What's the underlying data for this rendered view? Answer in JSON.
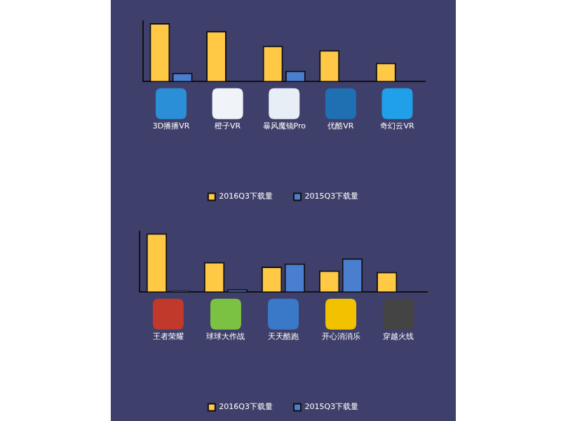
{
  "chart_data": [
    {
      "type": "bar",
      "categories": [
        "3D播播VR",
        "橙子VR",
        "暴风魔镜Pro",
        "优酷VR",
        "奇幻云VR"
      ],
      "series": [
        {
          "name": "2016Q3下载量",
          "color": "#FFC845",
          "values": [
            164,
            142,
            100,
            88,
            52
          ]
        },
        {
          "name": "2015Q3下载量",
          "color": "#4A7FD0",
          "values": [
            24,
            0,
            30,
            0,
            0
          ]
        }
      ],
      "ylim": [
        0,
        170
      ],
      "grid": false,
      "legend": "bottom",
      "tick_labels": "x"
    },
    {
      "type": "bar",
      "categories": [
        "王者荣耀",
        "球球大作战",
        "天天酷跑",
        "开心消消乐",
        "穿越火线"
      ],
      "series": [
        {
          "name": "2016Q3下载量",
          "color": "#FFC845",
          "values": [
            165,
            84,
            71,
            60,
            56
          ]
        },
        {
          "name": "2015Q3下载量",
          "color": "#4A7FD0",
          "values": [
            3,
            7,
            80,
            94,
            0
          ]
        }
      ],
      "ylim": [
        0,
        170
      ],
      "grid": false,
      "legend": "bottom",
      "tick_labels": "x"
    }
  ]
}
